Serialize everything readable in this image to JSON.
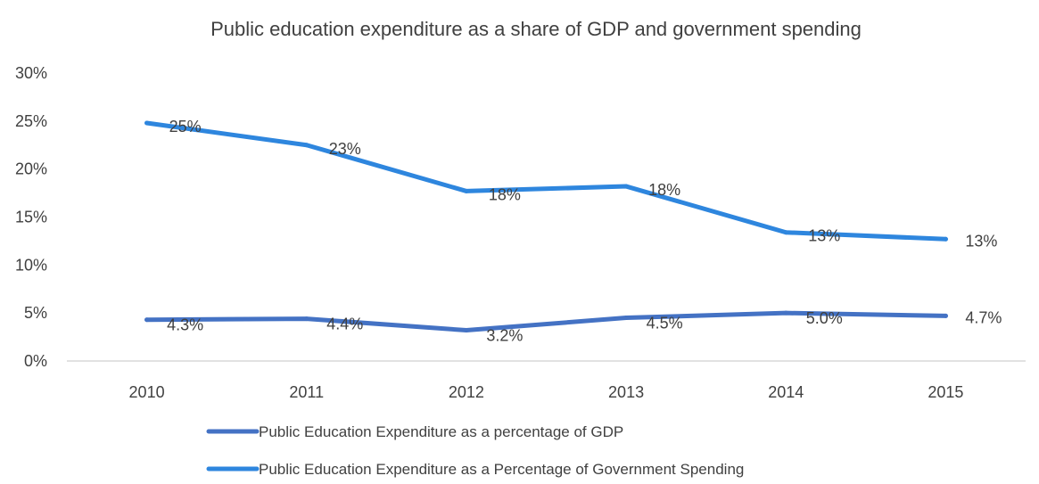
{
  "chart_data": {
    "type": "line",
    "title": "Public education expenditure as a share of GDP and government spending",
    "xlabel": "",
    "ylabel": "",
    "categories": [
      "2010",
      "2011",
      "2012",
      "2013",
      "2014",
      "2015"
    ],
    "ylim": [
      0,
      30
    ],
    "yticks": [
      "0%",
      "5%",
      "10%",
      "15%",
      "20%",
      "25%",
      "30%"
    ],
    "grid": false,
    "legend": "bottom",
    "series": [
      {
        "name": "Public Education Expenditure as a percentage of GDP",
        "color": "#4472C4",
        "values": [
          4.3,
          4.4,
          3.2,
          4.5,
          5.0,
          4.7
        ],
        "labels": [
          "4.3%",
          "4.4%",
          "3.2%",
          "4.5%",
          "5.0%",
          "4.7%"
        ]
      },
      {
        "name": "Public Education Expenditure as a Percentage of Government Spending",
        "color": "#2E86DE",
        "values": [
          24.8,
          22.5,
          17.7,
          18.2,
          13.4,
          12.7
        ],
        "labels": [
          "25%",
          "23%",
          "18%",
          "18%",
          "13%",
          "13%"
        ]
      }
    ]
  }
}
